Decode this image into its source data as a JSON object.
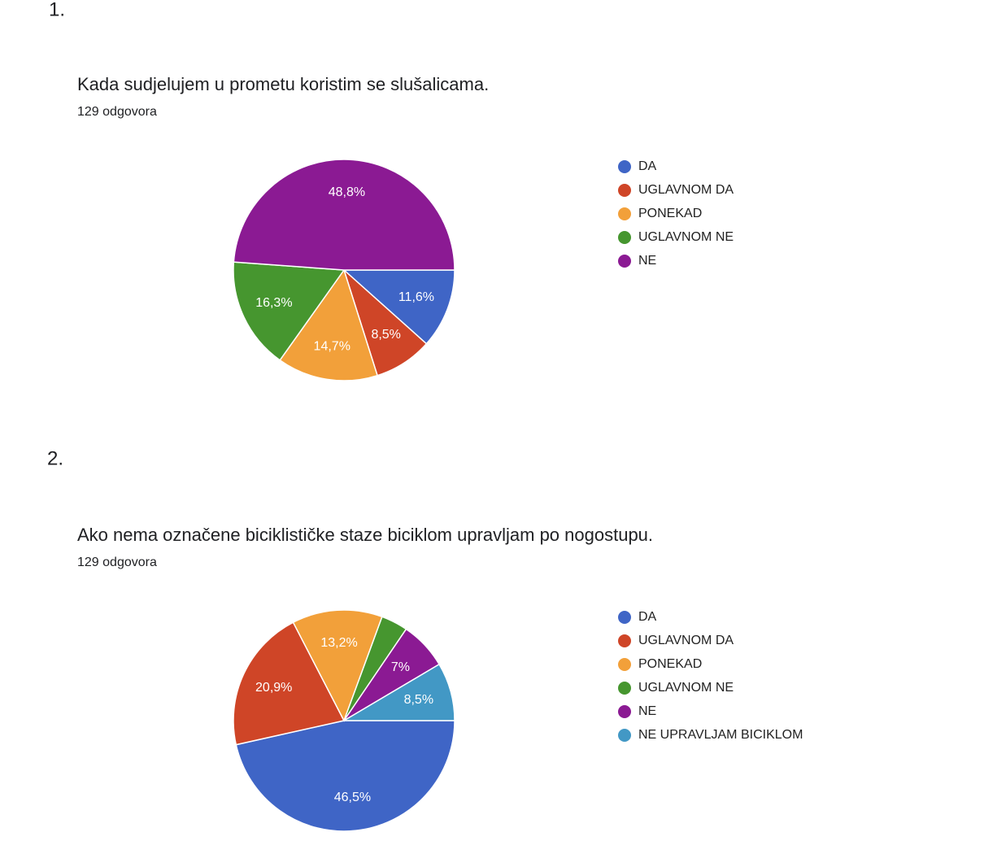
{
  "headings": [
    "1.",
    "2."
  ],
  "chart_data": [
    {
      "type": "pie",
      "title": "Kada sudjelujem u prometu koristim se slušalicama.",
      "subtitle": "129 odgovora",
      "categories": [
        "DA",
        "UGLAVNOM DA",
        "PONEKAD",
        "UGLAVNOM NE",
        "NE"
      ],
      "values": [
        11.6,
        8.5,
        14.7,
        16.3,
        48.8
      ],
      "value_labels": [
        "11,6%",
        "8,5%",
        "14,7%",
        "16,3%",
        "48,8%"
      ],
      "colors": [
        "#3f65c6",
        "#cf4527",
        "#f2a03a",
        "#46962f",
        "#8b1a93"
      ]
    },
    {
      "type": "pie",
      "title": "Ako nema označene biciklističke staze biciklom upravljam po nogostupu.",
      "subtitle": "129 odgovora",
      "categories": [
        "DA",
        "UGLAVNOM DA",
        "PONEKAD",
        "UGLAVNOM NE",
        "NE",
        "NE UPRAVLJAM BICIKLOM"
      ],
      "values": [
        46.5,
        20.9,
        13.2,
        3.9,
        7,
        8.5
      ],
      "value_labels": [
        "46,5%",
        "20,9%",
        "13,2%",
        null,
        "7%",
        "8,5%"
      ],
      "colors": [
        "#3f65c6",
        "#cf4527",
        "#f2a03a",
        "#46962f",
        "#8b1a93",
        "#4298c5"
      ]
    }
  ]
}
